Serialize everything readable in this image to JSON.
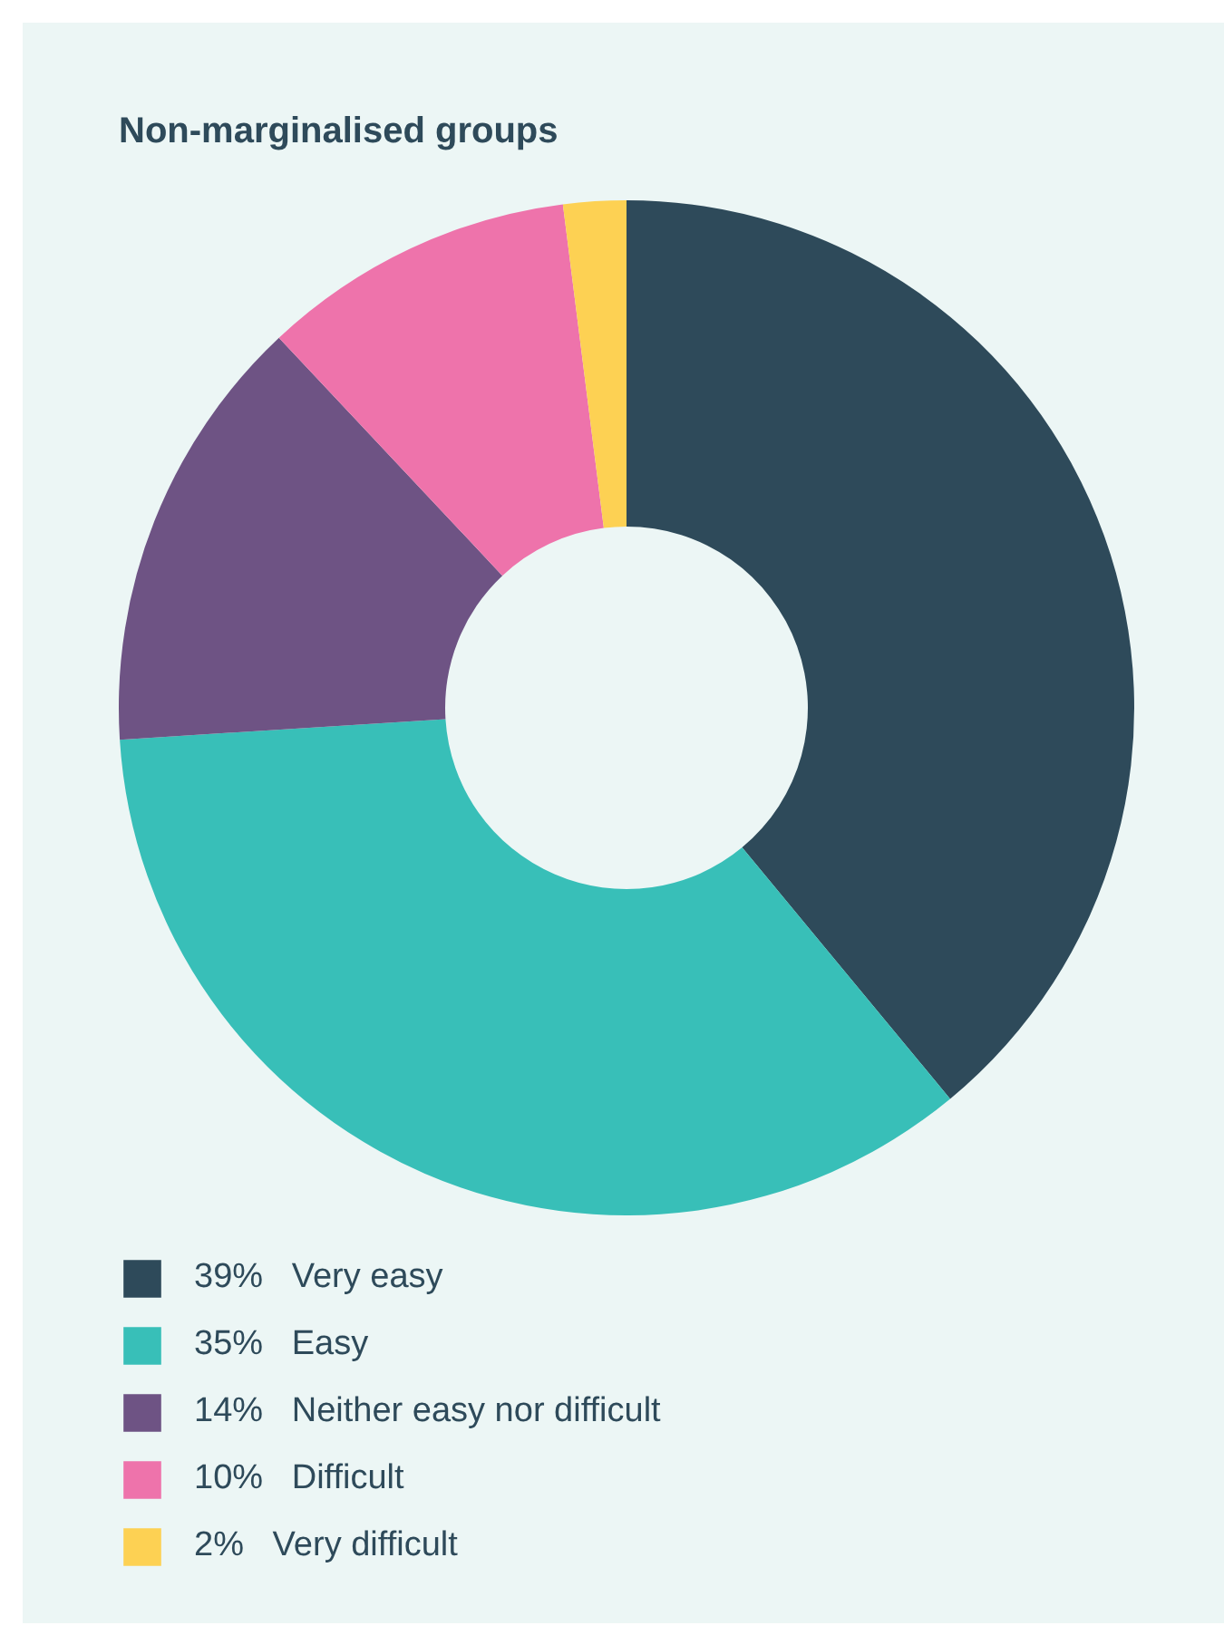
{
  "chart_data": {
    "type": "donut",
    "title": "Non-marginalised groups",
    "categories": [
      "Very easy",
      "Easy",
      "Neither easy nor difficult",
      "Difficult",
      "Very difficult"
    ],
    "values": [
      39,
      35,
      14,
      10,
      2
    ],
    "colors": [
      "#2e4a5a",
      "#38bfb8",
      "#6e5384",
      "#ee73ab",
      "#fdd153"
    ],
    "value_labels": [
      "39%",
      "35%",
      "14%",
      "10%",
      "2%"
    ],
    "legend": "bottom"
  }
}
